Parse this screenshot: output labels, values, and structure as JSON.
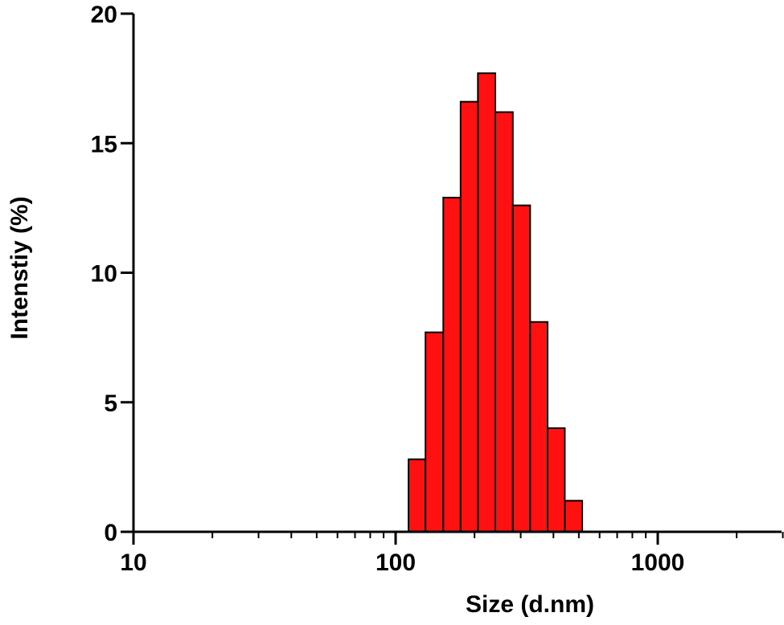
{
  "chart_data": {
    "type": "bar",
    "title": "",
    "xlabel": "Size (d.nm)",
    "ylabel": "Intenstiy (%)",
    "x_scale": "log",
    "xlim": [
      10,
      3000
    ],
    "ylim": [
      0,
      20
    ],
    "x_ticks": [
      10,
      100,
      1000
    ],
    "y_ticks": [
      0,
      5,
      10,
      15,
      20
    ],
    "grid": false,
    "legend": "none",
    "bar_color": "#ff1111",
    "bins": [
      {
        "x_start": 112,
        "x_end": 130,
        "value": 2.8
      },
      {
        "x_start": 130,
        "x_end": 152,
        "value": 7.7
      },
      {
        "x_start": 152,
        "x_end": 177,
        "value": 12.9
      },
      {
        "x_start": 177,
        "x_end": 206,
        "value": 16.6
      },
      {
        "x_start": 206,
        "x_end": 240,
        "value": 17.7
      },
      {
        "x_start": 240,
        "x_end": 280,
        "value": 16.2
      },
      {
        "x_start": 280,
        "x_end": 326,
        "value": 12.6
      },
      {
        "x_start": 326,
        "x_end": 380,
        "value": 8.1
      },
      {
        "x_start": 380,
        "x_end": 442,
        "value": 4.0
      },
      {
        "x_start": 442,
        "x_end": 515,
        "value": 1.2
      }
    ]
  }
}
